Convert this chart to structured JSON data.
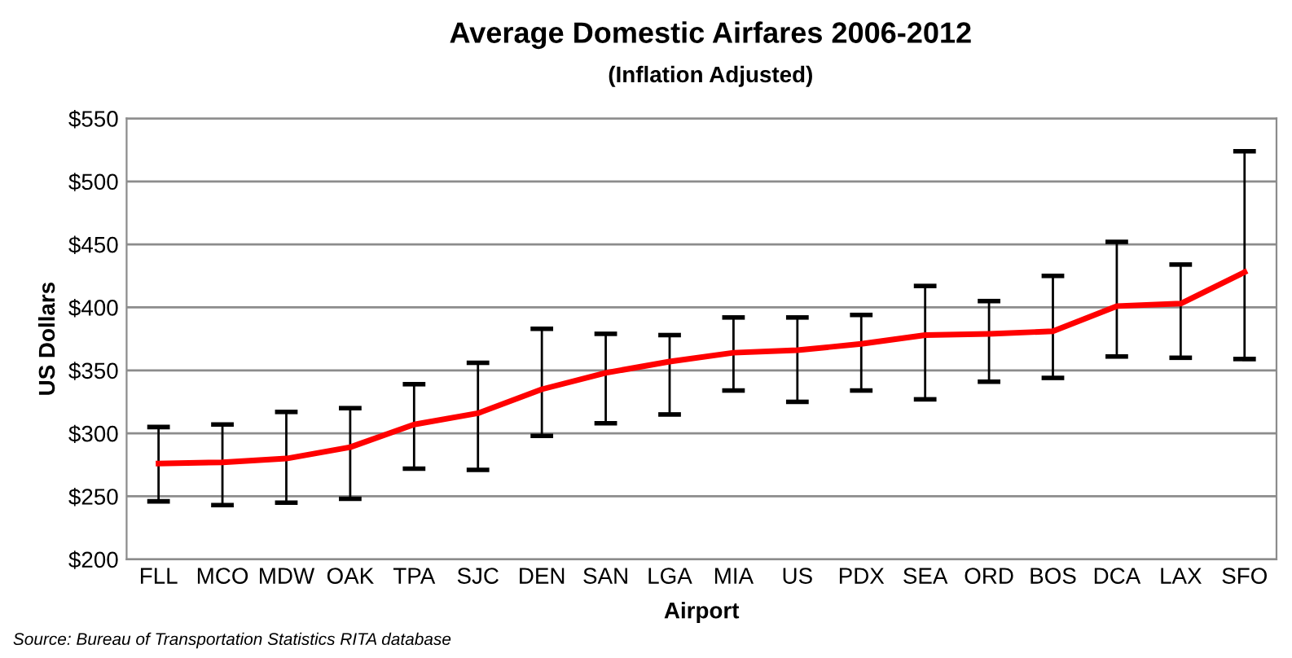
{
  "chart_data": {
    "type": "line",
    "title": "Average Domestic Airfares 2006-2012",
    "subtitle": "(Inflation Adjusted)",
    "xlabel": "Airport",
    "ylabel": "US Dollars",
    "annotations": [
      "Source: Bureau of Transportation Statistics RITA database"
    ],
    "categories": [
      "FLL",
      "MCO",
      "MDW",
      "OAK",
      "TPA",
      "SJC",
      "DEN",
      "SAN",
      "LGA",
      "MIA",
      "US",
      "PDX",
      "SEA",
      "ORD",
      "BOS",
      "DCA",
      "LAX",
      "SFO"
    ],
    "series": [
      {
        "color": "#ff0000",
        "values": [
          276,
          277,
          280,
          289,
          307,
          316,
          335,
          348,
          357,
          364,
          366,
          371,
          378,
          379,
          381,
          401,
          403,
          428
        ],
        "errors": [
          [
            246,
            305
          ],
          [
            243,
            307
          ],
          [
            245,
            317
          ],
          [
            248,
            320
          ],
          [
            272,
            339
          ],
          [
            271,
            356
          ],
          [
            298,
            383
          ],
          [
            308,
            379
          ],
          [
            315,
            378
          ],
          [
            334,
            392
          ],
          [
            325,
            392
          ],
          [
            334,
            394
          ],
          [
            327,
            417
          ],
          [
            341,
            405
          ],
          [
            344,
            425
          ],
          [
            361,
            452
          ],
          [
            360,
            434
          ],
          [
            359,
            524
          ]
        ]
      }
    ],
    "ylim": [
      200,
      550
    ],
    "yticks": [
      {
        "value": 200,
        "label": "$200"
      },
      {
        "value": 250,
        "label": "$250"
      },
      {
        "value": 300,
        "label": "$300"
      },
      {
        "value": 350,
        "label": "$350"
      },
      {
        "value": 400,
        "label": "$400"
      },
      {
        "value": 450,
        "label": "$450"
      },
      {
        "value": 500,
        "label": "$500"
      },
      {
        "value": 550,
        "label": "$550"
      }
    ],
    "grid": "y",
    "marker": "none",
    "line_style": "solid"
  }
}
